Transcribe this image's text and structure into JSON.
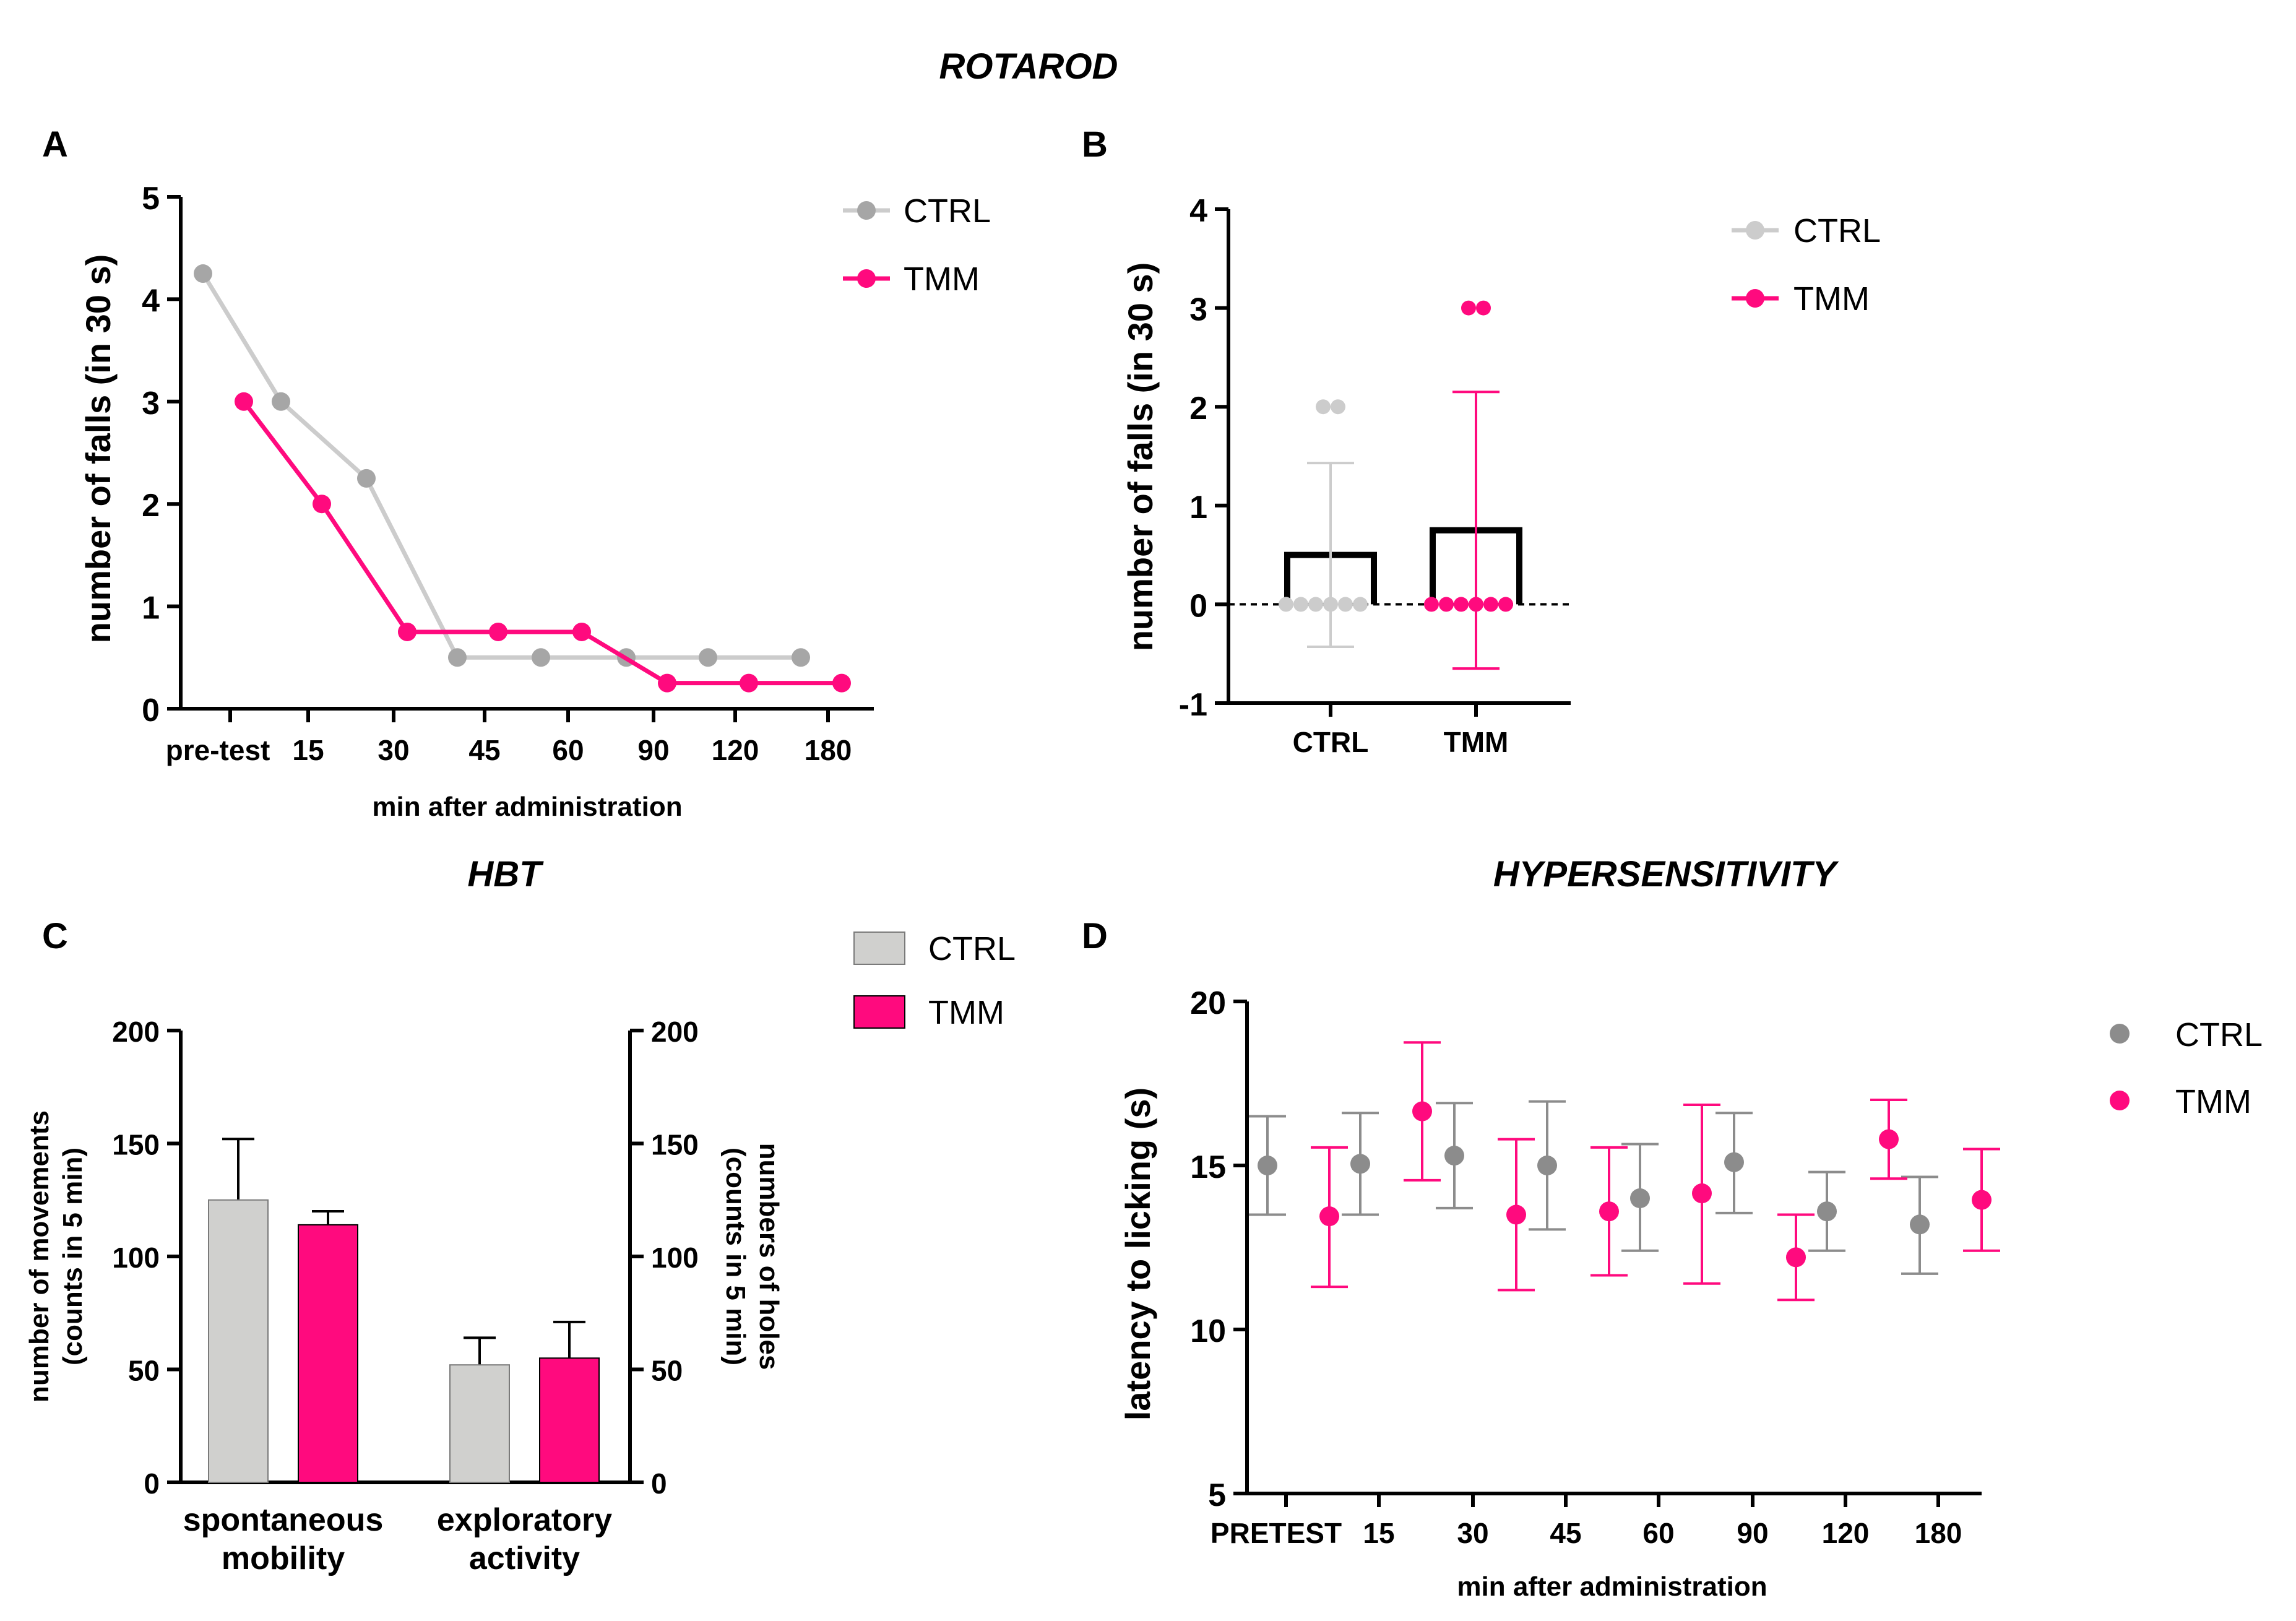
{
  "figure": {
    "title_rotarod": "ROTAROD",
    "title_hbt": "HBT",
    "title_hyper": "HYPERSENSITIVITY",
    "panel_letters": [
      "A",
      "B",
      "C",
      "D"
    ]
  },
  "colors": {
    "ctrl_line": "#cccccc",
    "ctrl_dot": "#a6a6a6",
    "ctrl_bar": "#d0d0ce",
    "ctrl_dark": "#8c8c8c",
    "tmm": "#ff0a7e"
  },
  "chart_data": [
    {
      "panel": "A",
      "type": "line",
      "categories": [
        "pre-test",
        "15",
        "30",
        "45",
        "60",
        "90",
        "120",
        "180"
      ],
      "series": [
        {
          "name": "CTRL",
          "values": [
            4.25,
            3,
            2.25,
            0.5,
            0.5,
            0.5,
            0.5,
            0.5
          ]
        },
        {
          "name": "TMM",
          "values": [
            3,
            2,
            0.75,
            0.75,
            0.75,
            0.25,
            0.25,
            0.25
          ]
        }
      ],
      "ylabel": "number of falls (in 30 s)",
      "xlabel": "min after administration",
      "ylim": [
        0,
        5
      ],
      "yticks": [
        "0",
        "1",
        "2",
        "3",
        "4",
        "5"
      ],
      "legend": [
        "CTRL",
        "TMM"
      ],
      "legend_position": "top-right"
    },
    {
      "panel": "B",
      "type": "bar",
      "categories": [
        "CTRL",
        "TMM"
      ],
      "means": [
        0.5,
        0.75
      ],
      "sd_upper": [
        1.43,
        2.15
      ],
      "sd_lower": [
        -0.43,
        -0.65
      ],
      "points": [
        [
          2,
          2,
          0,
          0,
          0,
          0,
          0,
          0
        ],
        [
          3,
          3,
          0,
          0,
          0,
          0,
          0,
          0
        ]
      ],
      "ylabel": "number of falls (in 30 s)",
      "ylim": [
        -1,
        4
      ],
      "yticks": [
        "-1",
        "0",
        "1",
        "2",
        "3",
        "4"
      ],
      "legend": [
        "CTRL",
        "TMM"
      ],
      "legend_position": "top-right"
    },
    {
      "panel": "C",
      "type": "bar",
      "categories": [
        "spontaneous mobility",
        "exploratory activity"
      ],
      "category_lines": [
        [
          "spontaneous",
          "mobility"
        ],
        [
          "exploratory",
          "activity"
        ]
      ],
      "series": [
        {
          "name": "CTRL",
          "values": [
            125,
            52
          ],
          "err_upper": [
            152,
            64
          ]
        },
        {
          "name": "TMM",
          "values": [
            114,
            55
          ],
          "err_upper": [
            120,
            71
          ]
        }
      ],
      "ylabel_left": [
        "number of movements",
        "(counts in 5 min)"
      ],
      "ylabel_right": [
        "numbers of holes",
        "(counts in 5 min)"
      ],
      "ylim": [
        0,
        200
      ],
      "yticks": [
        "0",
        "50",
        "100",
        "150",
        "200"
      ],
      "legend": [
        "CTRL",
        "TMM"
      ],
      "legend_position": "top-right"
    },
    {
      "panel": "D",
      "type": "scatter",
      "categories": [
        "PRETEST",
        "15",
        "30",
        "45",
        "60",
        "90",
        "120",
        "180"
      ],
      "series": [
        {
          "name": "CTRL",
          "values": [
            15.0,
            15.05,
            15.3,
            15.0,
            14.0,
            15.1,
            13.6,
            13.2
          ],
          "upper": [
            16.5,
            16.6,
            16.9,
            16.95,
            15.65,
            16.6,
            14.8,
            14.65
          ],
          "lower": [
            13.5,
            13.5,
            13.7,
            13.05,
            12.4,
            13.55,
            12.4,
            11.7
          ]
        },
        {
          "name": "TMM",
          "values": [
            13.45,
            16.65,
            13.5,
            13.6,
            14.15,
            12.2,
            15.8,
            13.95
          ],
          "upper": [
            15.55,
            18.75,
            15.8,
            15.55,
            16.85,
            13.5,
            17.0,
            15.5
          ],
          "lower": [
            11.3,
            14.55,
            11.2,
            11.65,
            11.4,
            10.9,
            14.6,
            12.4
          ]
        }
      ],
      "ylabel": "latency to licking (s)",
      "xlabel": "min after administration",
      "ylim": [
        5,
        20
      ],
      "yticks": [
        "5",
        "10",
        "15",
        "20"
      ],
      "legend": [
        "CTRL",
        "TMM"
      ],
      "legend_position": "right"
    }
  ]
}
